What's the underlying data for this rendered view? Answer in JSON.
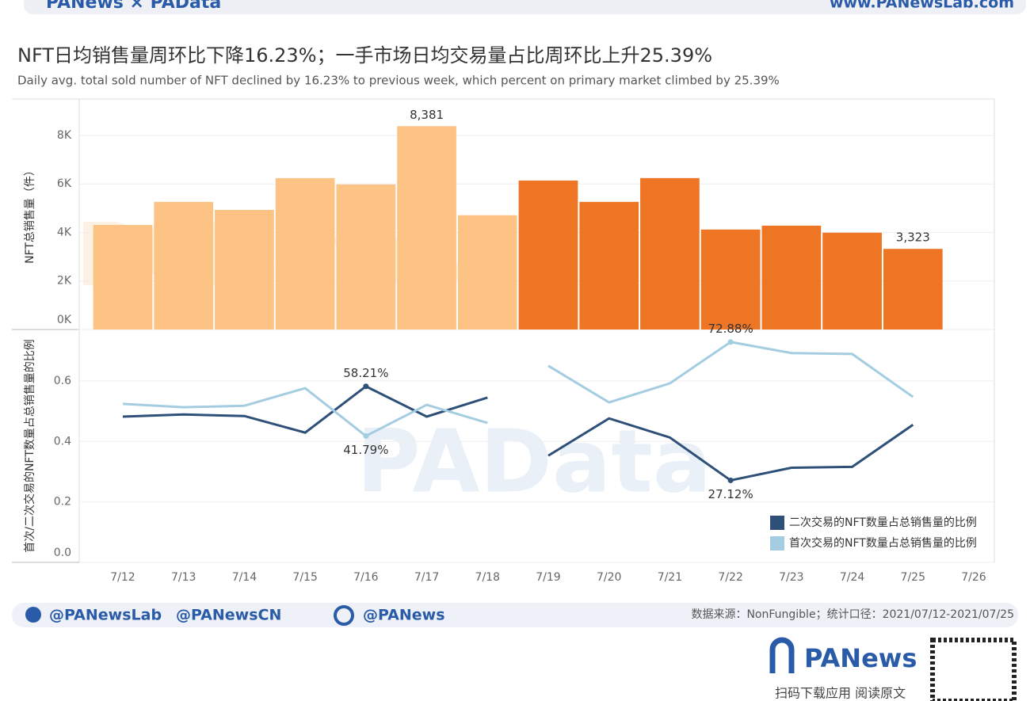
{
  "header": {
    "logo": "PANews × PAData",
    "site": "www.PANewsLab.com"
  },
  "chart_data": {
    "type": "combo",
    "title": "NFT日均销售量周环比下降16.23%；一手市场日均交易量占比周环比上升25.39%",
    "subtitle": "Daily avg. total sold number of NFT declined by 16.23% to previous week, which percent on primary market climbed by 25.39%",
    "categories": [
      "7/12",
      "7/13",
      "7/14",
      "7/15",
      "7/16",
      "7/17",
      "7/18",
      "7/19",
      "7/20",
      "7/21",
      "7/22",
      "7/23",
      "7/24",
      "7/25",
      "7/26"
    ],
    "watermarks": [
      "PANews",
      "PAData"
    ],
    "panels": [
      {
        "type": "bar",
        "ylabel": "NFT总销售量（件）",
        "ylim": [
          0,
          9500
        ],
        "yticks": [
          {
            "value": 0,
            "label": "0K"
          },
          {
            "value": 2000,
            "label": "2K"
          },
          {
            "value": 4000,
            "label": "4K"
          },
          {
            "value": 6000,
            "label": "6K"
          },
          {
            "value": 8000,
            "label": "8K"
          }
        ],
        "grid": true,
        "values": [
          4310,
          5260,
          4930,
          6240,
          5980,
          8381,
          4710,
          6140,
          5260,
          6240,
          4120,
          4280,
          3990,
          3323,
          null
        ],
        "value_labels": [
          null,
          null,
          null,
          null,
          null,
          "8,381",
          null,
          null,
          null,
          null,
          null,
          null,
          null,
          "3,323",
          null
        ],
        "colors": [
          "#fdc384",
          "#fdc384",
          "#fdc384",
          "#fdc384",
          "#fdc384",
          "#fdc384",
          "#fdc384",
          "#ee7524",
          "#ee7524",
          "#ee7524",
          "#ee7524",
          "#ee7524",
          "#ee7524",
          "#ee7524",
          null
        ]
      },
      {
        "type": "line",
        "ylabel": "首次/二次交易的NFT数量占总销售量的比例",
        "ylim": [
          0,
          0.77
        ],
        "yticks": [
          {
            "value": 0,
            "label": "0.0"
          },
          0.2,
          0.4,
          0.6
        ],
        "grid": true,
        "legend": "lower right",
        "series": [
          {
            "name": "二次交易的NFT数量占总销售量的比例",
            "color": "#2e5078",
            "values": [
              0.482,
              0.489,
              0.484,
              0.429,
              0.5821,
              0.482,
              0.545,
              0.353,
              0.476,
              0.413,
              0.2712,
              0.313,
              0.316,
              0.455,
              null
            ],
            "value_labels": [
              null,
              null,
              null,
              null,
              "58.21%",
              null,
              null,
              null,
              null,
              null,
              "27.12%",
              null,
              null,
              null,
              null
            ]
          },
          {
            "name": "首次交易的NFT数量占总销售量的比例",
            "color": "#a5cde2",
            "values": [
              0.524,
              0.513,
              0.518,
              0.576,
              0.4179,
              0.521,
              0.461,
              0.65,
              0.529,
              0.592,
              0.7288,
              0.692,
              0.689,
              0.547,
              null
            ],
            "value_labels": [
              null,
              null,
              null,
              null,
              "41.79%",
              null,
              null,
              null,
              null,
              null,
              "72.88%",
              null,
              null,
              null,
              null
            ]
          }
        ]
      }
    ]
  },
  "footer": {
    "twitter1": "@PANewsLab",
    "twitter2": "@PANewsCN",
    "weibo": "@PANews",
    "source": "数据来源：NonFungible；统计口径：2021/07/12-2021/07/25",
    "brand": "PANews",
    "qr_caption": "扫码下载应用  阅读原文"
  }
}
